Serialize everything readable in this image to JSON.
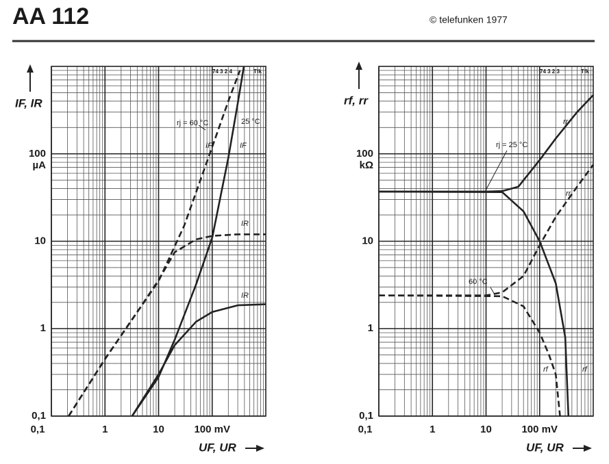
{
  "header": {
    "title": "AA 112",
    "copyright": "© telefunken 1977"
  },
  "chart_data": [
    {
      "type": "line",
      "xlabel": "UF, UR",
      "ylabel": "IF, IR",
      "log_x": true,
      "log_y": true,
      "grid": true,
      "xlim": [
        0.1,
        1000
      ],
      "ylim": [
        0.1,
        1000
      ],
      "xticks": [
        {
          "value": 0.1,
          "label": "0,1"
        },
        1,
        10,
        {
          "value": 100,
          "label": "100 mV"
        }
      ],
      "yticks": [
        {
          "value": 0.1,
          "label": "0,1"
        },
        1,
        10,
        {
          "value": 100,
          "label": "100 µA"
        }
      ],
      "annotations": [
        "rj = 60 °C",
        "25 °C",
        "74 3 2 4",
        "Tfk"
      ],
      "series": [
        {
          "name": "IF",
          "color": "#222222",
          "dashed": true,
          "x": [
            0.21,
            1,
            10,
            30,
            100,
            200,
            330
          ],
          "values": [
            0.1,
            0.45,
            3.5,
            15,
            120,
            400,
            900
          ]
        },
        {
          "name": "IR",
          "color": "#222222",
          "dashed": true,
          "x": [
            0.21,
            1,
            5,
            10,
            20,
            50,
            100,
            300,
            1000
          ],
          "values": [
            0.1,
            0.45,
            1.9,
            3.6,
            7.5,
            10.5,
            11.5,
            12,
            12
          ]
        },
        {
          "name": "IF",
          "color": "#222222",
          "dashed": false,
          "x": [
            3.2,
            10,
            20,
            50,
            100,
            200,
            300,
            390
          ],
          "values": [
            0.1,
            0.28,
            0.75,
            3.2,
            11,
            90,
            380,
            1000
          ]
        },
        {
          "name": "IR",
          "color": "#222222",
          "dashed": false,
          "x": [
            3.2,
            10,
            20,
            50,
            100,
            300,
            1000
          ],
          "values": [
            0.1,
            0.3,
            0.65,
            1.2,
            1.55,
            1.85,
            1.9
          ]
        }
      ]
    },
    {
      "type": "line",
      "xlabel": "UF, UR",
      "ylabel": "rf, rr",
      "log_x": true,
      "log_y": true,
      "grid": true,
      "xlim": [
        0.1,
        1000
      ],
      "ylim": [
        0.1,
        1000
      ],
      "xticks": [
        {
          "value": 0.1,
          "label": "0,1"
        },
        1,
        10,
        {
          "value": 100,
          "label": "100 mV"
        }
      ],
      "yticks": [
        {
          "value": 0.1,
          "label": "0,1"
        },
        1,
        10,
        {
          "value": 100,
          "label": "100 kΩ"
        }
      ],
      "annotations": [
        "rj = 25 °C",
        "60 °C",
        "74 3 2 3",
        "Tfk"
      ],
      "series": [
        {
          "name": "rr",
          "color": "#222222",
          "dashed": false,
          "x": [
            0.1,
            10,
            20,
            40,
            100,
            200,
            500,
            1000
          ],
          "values": [
            37,
            37,
            37.5,
            42,
            85,
            150,
            300,
            470
          ]
        },
        {
          "name": "rf",
          "color": "#222222",
          "dashed": false,
          "x": [
            0.1,
            20,
            50,
            100,
            200,
            300,
            345
          ],
          "values": [
            37,
            36.5,
            22,
            10,
            3.3,
            0.8,
            0.1
          ]
        },
        {
          "name": "rr",
          "color": "#222222",
          "dashed": true,
          "x": [
            0.1,
            10,
            20,
            50,
            100,
            200,
            500,
            1000
          ],
          "values": [
            2.4,
            2.4,
            2.6,
            4,
            9,
            19,
            42,
            75
          ]
        },
        {
          "name": "rf",
          "color": "#222222",
          "dashed": true,
          "x": [
            0.1,
            20,
            50,
            100,
            150,
            200,
            240
          ],
          "values": [
            2.4,
            2.35,
            1.8,
            0.9,
            0.5,
            0.3,
            0.1
          ]
        }
      ]
    }
  ]
}
